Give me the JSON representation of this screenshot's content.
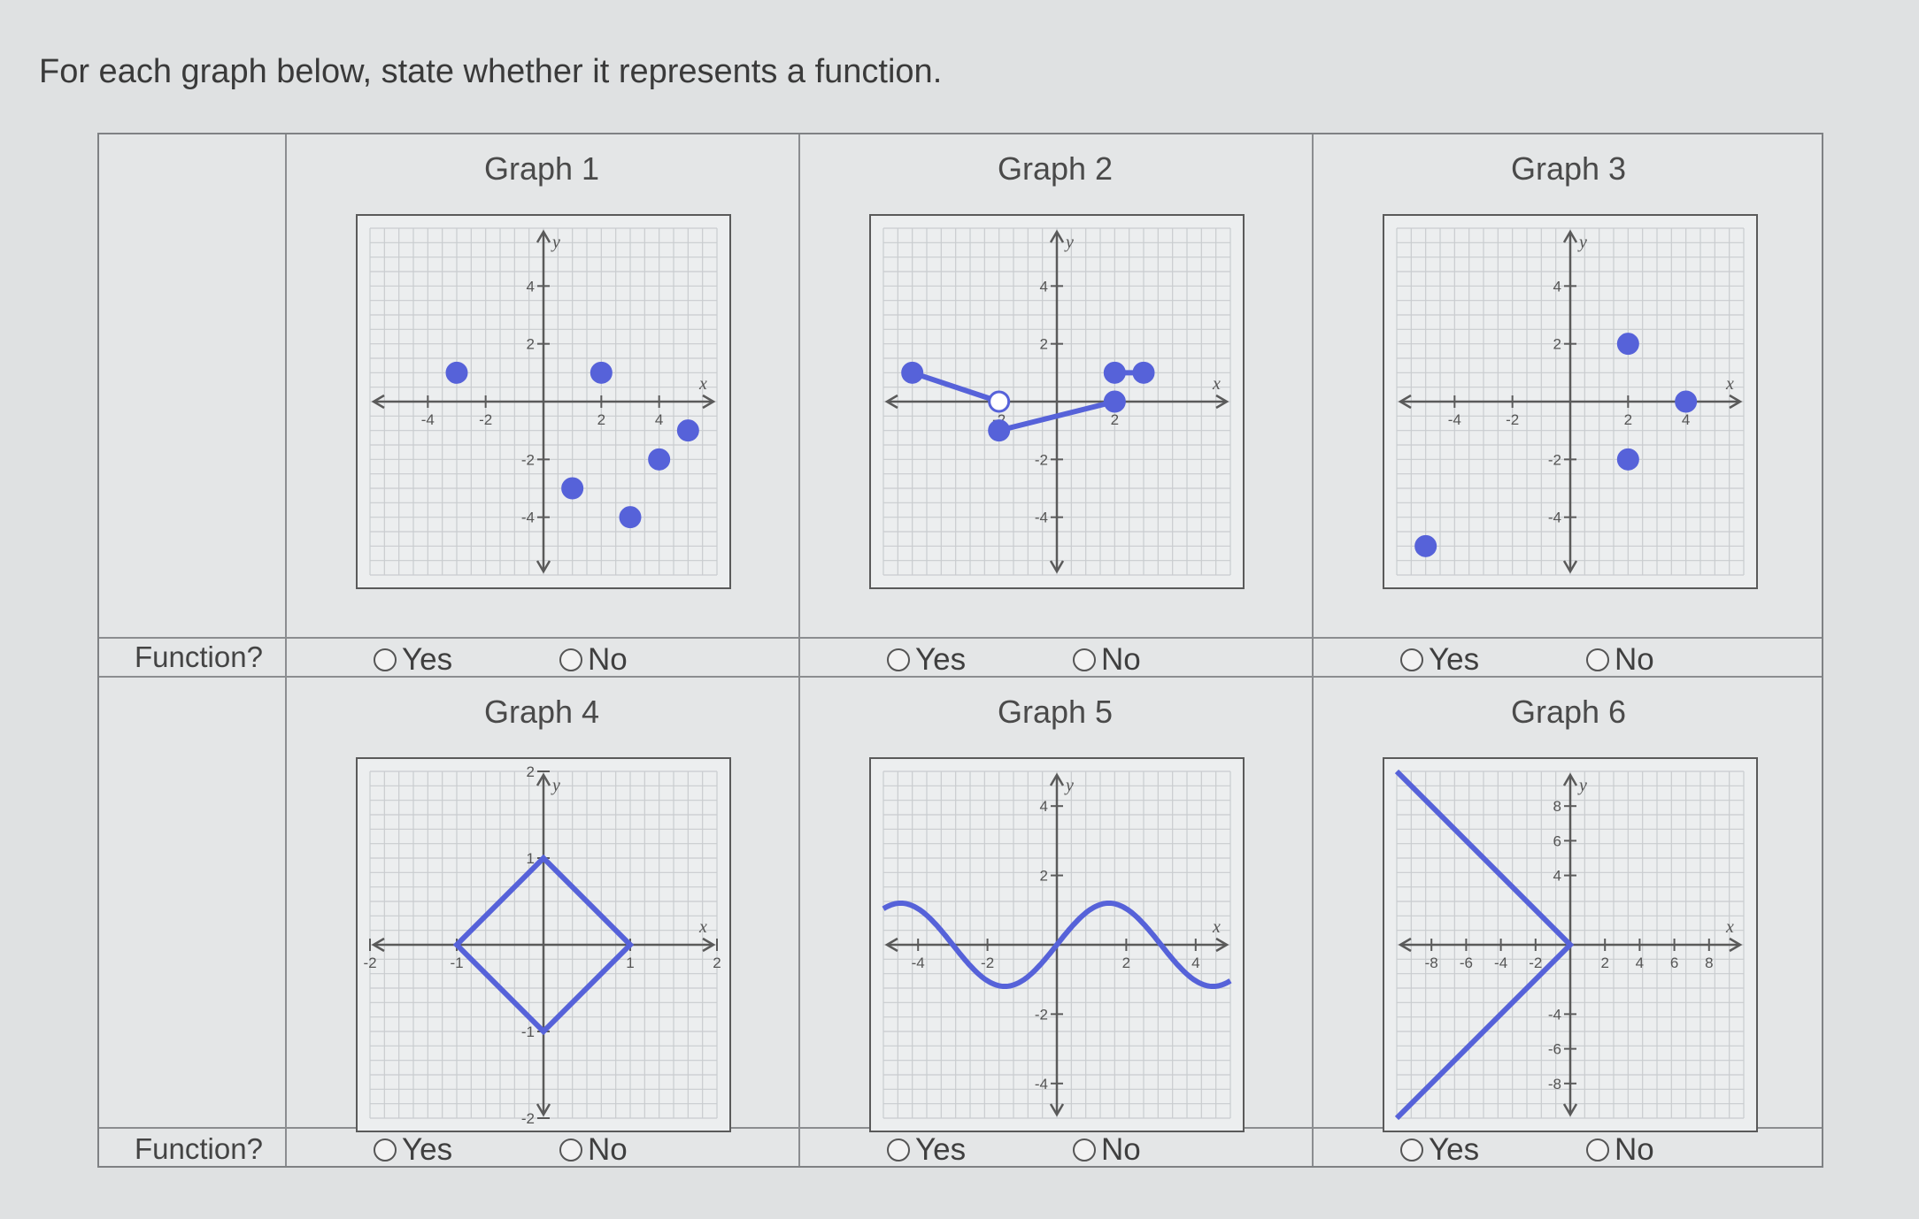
{
  "prompt": "For each graph below, state whether it represents a function.",
  "row_label": "Function?",
  "choices": {
    "yes": "Yes",
    "no": "No"
  },
  "graphs": [
    {
      "title": "Graph 1",
      "kind": "points",
      "range": [
        -6,
        6
      ],
      "xticks": [
        -4,
        -2,
        2,
        4
      ],
      "yticks": [
        4,
        2,
        -2,
        -4
      ],
      "points": [
        [
          -3,
          1
        ],
        [
          2,
          1
        ],
        [
          1,
          -3
        ],
        [
          3,
          -4
        ],
        [
          4,
          -2
        ],
        [
          5,
          -1
        ]
      ]
    },
    {
      "title": "Graph 2",
      "kind": "segments",
      "range": [
        -6,
        6
      ],
      "xticks": [
        -2,
        2
      ],
      "yticks": [
        4,
        2,
        -2,
        -4
      ],
      "segments": [
        [
          [
            -5,
            1
          ],
          [
            -2,
            0
          ]
        ],
        [
          [
            -2,
            -1
          ],
          [
            2,
            0
          ]
        ],
        [
          [
            2,
            1
          ],
          [
            3,
            1
          ]
        ]
      ],
      "open_points": [
        [
          -2,
          0
        ]
      ],
      "closed_points": [
        [
          -5,
          1
        ],
        [
          -2,
          -1
        ],
        [
          2,
          0
        ],
        [
          2,
          1
        ],
        [
          3,
          1
        ]
      ]
    },
    {
      "title": "Graph 3",
      "kind": "points",
      "range": [
        -6,
        6
      ],
      "xticks": [
        -4,
        -2,
        2,
        4
      ],
      "yticks": [
        4,
        2,
        -2,
        -4
      ],
      "points": [
        [
          -5,
          -5
        ],
        [
          2,
          2
        ],
        [
          2,
          -2
        ],
        [
          4,
          0
        ]
      ]
    },
    {
      "title": "Graph 4",
      "kind": "diamond",
      "range": [
        -2,
        2
      ],
      "xticks": [
        -2,
        -1,
        1,
        2
      ],
      "yticks": [
        2,
        1,
        -1,
        -2
      ],
      "vertices": [
        [
          0,
          1
        ],
        [
          1,
          0
        ],
        [
          0,
          -1
        ],
        [
          -1,
          0
        ]
      ]
    },
    {
      "title": "Graph 5",
      "kind": "wave",
      "range": [
        -5,
        5
      ],
      "xticks": [
        -4,
        -2,
        2,
        4
      ],
      "yticks": [
        4,
        2,
        -2,
        -4
      ]
    },
    {
      "title": "Graph 6",
      "kind": "vshape",
      "range": [
        -10,
        10
      ],
      "xticks": [
        -8,
        -6,
        -4,
        -2,
        2,
        4,
        6,
        8
      ],
      "yticks": [
        8,
        6,
        4,
        -4,
        -6,
        -8
      ],
      "vertex": [
        0,
        0
      ]
    }
  ],
  "colors": {
    "curve": "#5662d9",
    "axis": "#5a5a5a",
    "grid": "#c9cccf"
  }
}
